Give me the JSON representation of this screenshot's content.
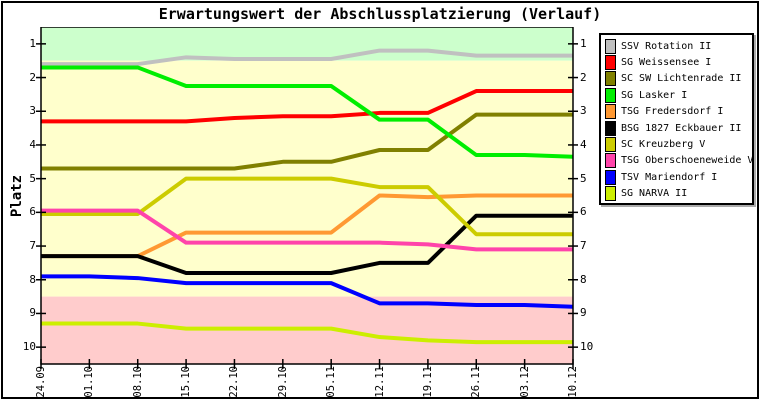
{
  "chart_data": {
    "type": "line",
    "title": "Erwartungswert der Abschlussplatzierung (Verlauf)",
    "xlabel": "",
    "ylabel": "Platz",
    "ylim": [
      0.5,
      10.5
    ],
    "y_inverted": true,
    "grid": false,
    "legend_position": "right",
    "y_ticks": [
      1,
      2,
      3,
      4,
      5,
      6,
      7,
      8,
      9,
      10
    ],
    "x_tick_labels": [
      "24.09",
      "01.10",
      "08.10",
      "15.10",
      "22.10",
      "29.10",
      "05.11",
      "12.11",
      "19.11",
      "26.11",
      "03.12",
      "10.12"
    ],
    "zones": [
      {
        "name": "promotion-zone",
        "from": 0.5,
        "to": 1.5,
        "color": "#ccffcc"
      },
      {
        "name": "midfield-zone",
        "from": 1.5,
        "to": 8.5,
        "color": "#ffffcc"
      },
      {
        "name": "relegation-zone",
        "from": 8.5,
        "to": 10.5,
        "color": "#ffcccc"
      }
    ],
    "series": [
      {
        "name": "SSV Rotation II",
        "color": "#c0c0c0",
        "values": [
          1.6,
          1.6,
          1.6,
          1.4,
          1.45,
          1.45,
          1.45,
          1.2,
          1.2,
          1.35,
          1.35,
          1.35
        ]
      },
      {
        "name": "SG Weissensee I",
        "color": "#ff0000",
        "values": [
          3.3,
          3.3,
          3.3,
          3.3,
          3.2,
          3.15,
          3.15,
          3.05,
          3.05,
          2.4,
          2.4,
          2.4
        ]
      },
      {
        "name": "SC SW Lichtenrade II",
        "color": "#808000",
        "values": [
          4.7,
          4.7,
          4.7,
          4.7,
          4.7,
          4.5,
          4.5,
          4.15,
          4.15,
          3.1,
          3.1,
          3.1
        ]
      },
      {
        "name": "SG Lasker I",
        "color": "#00ee00",
        "values": [
          1.7,
          1.7,
          1.7,
          2.25,
          2.25,
          2.25,
          2.25,
          3.25,
          3.25,
          4.3,
          4.3,
          4.35
        ]
      },
      {
        "name": "TSG Fredersdorf I",
        "color": "#ff9933",
        "values": [
          7.3,
          7.3,
          7.3,
          6.6,
          6.6,
          6.6,
          6.6,
          5.5,
          5.55,
          5.5,
          5.5,
          5.5
        ]
      },
      {
        "name": "BSG 1827 Eckbauer II",
        "color": "#000000",
        "values": [
          7.3,
          7.3,
          7.3,
          7.8,
          7.8,
          7.8,
          7.8,
          7.5,
          7.5,
          6.1,
          6.1,
          6.1
        ]
      },
      {
        "name": "SC Kreuzberg V",
        "color": "#cccc00",
        "values": [
          6.05,
          6.05,
          6.05,
          5.0,
          5.0,
          5.0,
          5.0,
          5.25,
          5.25,
          6.65,
          6.65,
          6.65
        ]
      },
      {
        "name": "TSG Oberschoeneweide V",
        "color": "#ff44aa",
        "values": [
          5.95,
          5.95,
          5.95,
          6.9,
          6.9,
          6.9,
          6.9,
          6.9,
          6.95,
          7.1,
          7.1,
          7.1
        ]
      },
      {
        "name": "TSV Mariendorf I",
        "color": "#0000ff",
        "values": [
          7.9,
          7.9,
          7.95,
          8.1,
          8.1,
          8.1,
          8.1,
          8.7,
          8.7,
          8.75,
          8.75,
          8.8
        ]
      },
      {
        "name": "SG NARVA II",
        "color": "#ccee00",
        "values": [
          9.3,
          9.3,
          9.3,
          9.45,
          9.45,
          9.45,
          9.45,
          9.7,
          9.8,
          9.85,
          9.85,
          9.85
        ]
      }
    ]
  }
}
